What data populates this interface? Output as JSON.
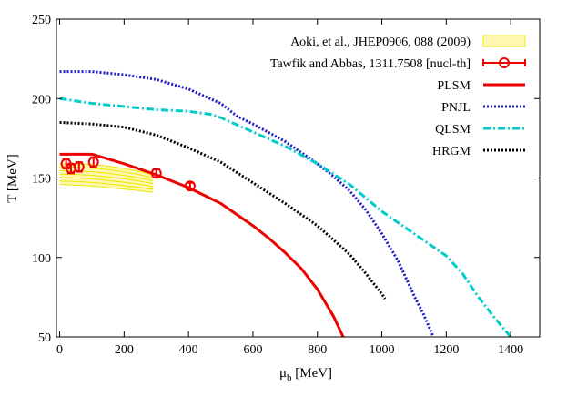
{
  "chart_data": {
    "type": "line",
    "xlabel": "μ",
    "xlabel_sub": "b",
    "xlabel_unit": " [MeV]",
    "ylabel": "T [MeV]",
    "xlim": [
      -10,
      1490
    ],
    "ylim": [
      50,
      250
    ],
    "xticks": [
      0,
      200,
      400,
      600,
      800,
      1000,
      1200,
      1400
    ],
    "yticks": [
      50,
      100,
      150,
      200,
      250
    ],
    "grid": false,
    "legend_position": "top-right",
    "band": {
      "name": "Aoki, et al., JHEP0906, 088 (2009)",
      "color": "#e8e800",
      "mu": [
        0,
        50,
        100,
        150,
        200,
        250,
        290
      ],
      "upper": [
        159,
        159,
        158.5,
        157.5,
        156,
        154,
        152
      ],
      "lower": [
        146,
        145.5,
        145,
        144,
        143,
        142,
        141
      ]
    },
    "points": {
      "name": "Tawfik and Abbas, 1311.7508 [nucl-th]",
      "color": "#ee0000",
      "x": [
        20,
        35,
        60,
        105,
        300,
        405
      ],
      "y": [
        159,
        156,
        157,
        160,
        153,
        145
      ],
      "yerr": [
        3,
        3,
        3,
        3,
        2.5,
        2
      ]
    },
    "series": [
      {
        "name": "PLSM",
        "color": "#ee0000",
        "style": "solid",
        "x": [
          0,
          30,
          100,
          200,
          300,
          400,
          500,
          550,
          600,
          650,
          700,
          750,
          800,
          850,
          880,
          905
        ],
        "y": [
          165,
          165,
          165,
          159,
          152,
          144,
          134,
          127,
          120,
          112,
          103,
          93,
          80,
          63,
          50,
          36
        ]
      },
      {
        "name": "PNJL",
        "color": "#1c1ccc",
        "style": "dotted",
        "x": [
          0,
          100,
          200,
          300,
          400,
          500,
          550,
          600,
          700,
          800,
          850,
          900,
          950,
          1000,
          1050,
          1100,
          1130,
          1160
        ],
        "y": [
          217,
          217,
          215,
          212,
          206,
          197,
          189,
          184,
          173,
          159,
          151,
          142,
          130,
          115,
          98,
          76,
          64,
          50
        ]
      },
      {
        "name": "QLSM",
        "color": "#00cccc",
        "style": "dashdot",
        "x": [
          0,
          100,
          200,
          300,
          400,
          470,
          500,
          600,
          700,
          800,
          900,
          1000,
          1100,
          1200,
          1250,
          1300,
          1350,
          1400
        ],
        "y": [
          200,
          197,
          195,
          193,
          192,
          190,
          188,
          179,
          170,
          159,
          146,
          129,
          115,
          101,
          90,
          75,
          62,
          50
        ]
      },
      {
        "name": "HRGM",
        "color": "#000000",
        "style": "dotted",
        "x": [
          0,
          100,
          200,
          300,
          400,
          500,
          600,
          700,
          800,
          900,
          950,
          1000,
          1010
        ],
        "y": [
          185,
          184,
          182,
          177,
          169,
          160,
          147,
          134,
          120,
          102,
          90,
          77,
          74
        ]
      }
    ]
  }
}
